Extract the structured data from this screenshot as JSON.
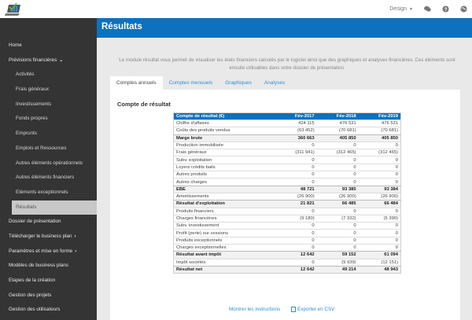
{
  "topbar": {
    "logo_icon": "laptop-chart-logo",
    "design_label": "Design",
    "icons": [
      "chat-icon",
      "help-icon",
      "globe-icon"
    ]
  },
  "sidebar": {
    "items": [
      {
        "label": "Home",
        "level": 0
      },
      {
        "label": "Prévisions financières",
        "level": 0,
        "chevron": "down"
      },
      {
        "label": "Activités",
        "level": 1
      },
      {
        "label": "Frais généraux",
        "level": 1
      },
      {
        "label": "Investissements",
        "level": 1
      },
      {
        "label": "Fonds propres",
        "level": 1
      },
      {
        "label": "Emprunts",
        "level": 1
      },
      {
        "label": "Emplois et Ressources",
        "level": 1
      },
      {
        "label": "Autres éléments opérationnels",
        "level": 1
      },
      {
        "label": "Autres éléments financiers",
        "level": 1
      },
      {
        "label": "Eléments exceptionnels",
        "level": 1
      },
      {
        "label": "Résultats",
        "level": 1,
        "active": true
      },
      {
        "label": "Dossier de présentation",
        "level": 0
      },
      {
        "label": "Télécharger le business plan",
        "level": 0,
        "chevron": "right"
      },
      {
        "label": "Paramètres et mise en forme",
        "level": 0,
        "chevron": "right"
      },
      {
        "label": "Modèles de business plans",
        "level": 0
      },
      {
        "label": "Etapes de la création",
        "level": 0
      },
      {
        "label": "Gestion des projets",
        "level": 0
      },
      {
        "label": "Gestion des utilisateurs",
        "level": 0
      }
    ]
  },
  "header": {
    "title": "Résultats",
    "color": "#0c72bf"
  },
  "intro": {
    "text": "Le module résultat vous permet de visualiser les états financiers calculés par le logiciel ainsi que des graphiques et analyses financières. Ces éléments sont ensuite utilisables dans votre dossier de présentation."
  },
  "tabs": [
    {
      "label": "Comptes annuels",
      "active": true
    },
    {
      "label": "Comptes mensuels"
    },
    {
      "label": "Graphiques"
    },
    {
      "label": "Analyses"
    }
  ],
  "panel": {
    "title": "Compte de résultat",
    "table": {
      "headers": [
        "Compte de résultat (€)",
        "Fév-2017",
        "Fév-2018",
        "Fév-2019"
      ],
      "rows": [
        {
          "label": "Chiffre d'affaires",
          "values": [
            "424 115",
            "476 531",
            "476 531"
          ],
          "total": false
        },
        {
          "label": "Coûts des produits vendus",
          "values": [
            "(63 452)",
            "(70 681)",
            "(70 681)"
          ],
          "total": false
        },
        {
          "label": "Marge brute",
          "values": [
            "360 663",
            "405 850",
            "405 850"
          ],
          "total": true
        },
        {
          "label": "Production immobilisée",
          "values": [
            "0",
            "0",
            "0"
          ],
          "total": false
        },
        {
          "label": "Frais généraux",
          "values": [
            "(311 941)",
            "(312 465)",
            "(312 465)"
          ],
          "total": false
        },
        {
          "label": "Subv. exploitation",
          "values": [
            "0",
            "0",
            "0"
          ],
          "total": false
        },
        {
          "label": "Loyers crédits bails",
          "values": [
            "0",
            "0",
            "0"
          ],
          "total": false
        },
        {
          "label": "Autres produits",
          "values": [
            "0",
            "0",
            "0"
          ],
          "total": false
        },
        {
          "label": "Autres charges",
          "values": [
            "0",
            "0",
            "0"
          ],
          "total": false
        },
        {
          "label": "EBE",
          "values": [
            "48 721",
            "93 385",
            "93 384"
          ],
          "total": true
        },
        {
          "label": "Amortissements",
          "values": [
            "(26 900)",
            "(26 900)",
            "(26 900)"
          ],
          "total": false
        },
        {
          "label": "Résultat d'exploitation",
          "values": [
            "21 821",
            "66 485",
            "66 484"
          ],
          "total": true
        },
        {
          "label": "Produits financiers",
          "values": [
            "0",
            "0",
            "0"
          ],
          "total": false
        },
        {
          "label": "Charges financières",
          "values": [
            "(9 180)",
            "(7 332)",
            "(5 390)"
          ],
          "total": false
        },
        {
          "label": "Subv. investissement",
          "values": [
            "0",
            "0",
            "0"
          ],
          "total": false
        },
        {
          "label": "Profit (perte) sur cessions",
          "values": [
            "0",
            "0",
            "0"
          ],
          "total": false
        },
        {
          "label": "Produits exceptionnels",
          "values": [
            "0",
            "0",
            "0"
          ],
          "total": false
        },
        {
          "label": "Charges exceptionnelles",
          "values": [
            "0",
            "0",
            "0"
          ],
          "total": false
        },
        {
          "label": "Résultat avant impôt",
          "values": [
            "12 642",
            "59 152",
            "61 094"
          ],
          "total": true
        },
        {
          "label": "Impôt sociétés",
          "values": [
            "0",
            "(9 939)",
            "(12 151)"
          ],
          "total": false
        },
        {
          "label": "Résultat net",
          "values": [
            "12 642",
            "49 214",
            "48 943"
          ],
          "total": true
        }
      ]
    }
  },
  "footer": {
    "show_instructions": "Montrer les instructions",
    "export_csv": "Exporter en CSV",
    "export_icon": "csv-file-icon"
  }
}
